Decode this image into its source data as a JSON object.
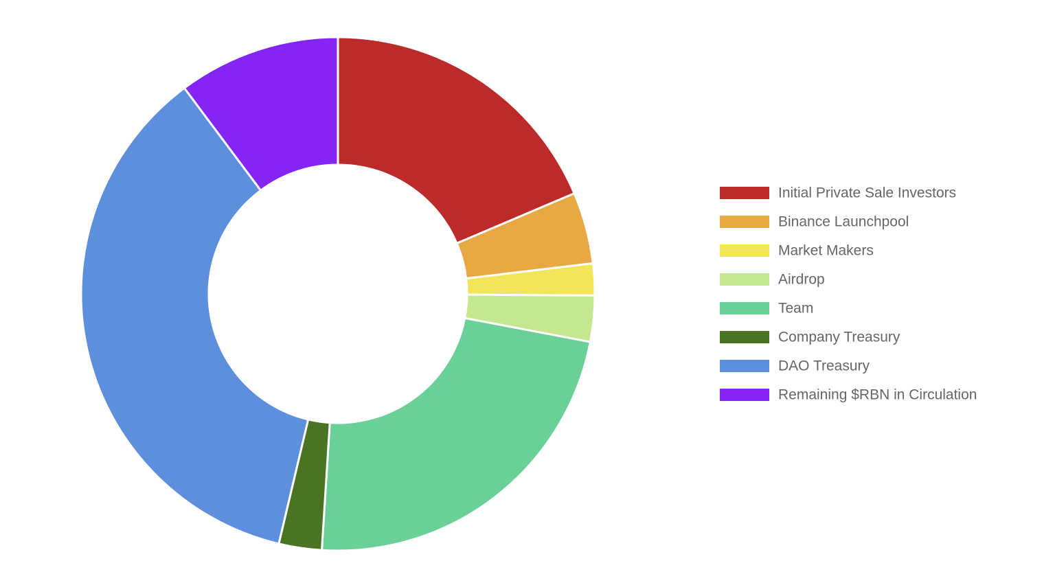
{
  "chart_data": {
    "type": "doughnut",
    "legend": "right",
    "series": [
      {
        "name": "Initial Private Sale Investors",
        "color": "#bd2a2a",
        "values": [
          18.6
        ]
      },
      {
        "name": "Binance Launchpool",
        "color": "#e8a945",
        "values": [
          4.5
        ]
      },
      {
        "name": "Market Makers",
        "color": "#f2e55a",
        "values": [
          2
        ]
      },
      {
        "name": "Airdrop",
        "color": "#c4e78f",
        "values": [
          2.9
        ]
      },
      {
        "name": "Team",
        "color": "#6ad098",
        "values": [
          23
        ]
      },
      {
        "name": "Company Treasury",
        "color": "#4a7324",
        "values": [
          2.7
        ]
      },
      {
        "name": "DAO Treasury",
        "color": "#5e8fdc",
        "values": [
          36.1
        ]
      },
      {
        "name": "Remaining $RBN in Circulation",
        "color": "#8424f5",
        "values": [
          10.2
        ]
      }
    ]
  }
}
